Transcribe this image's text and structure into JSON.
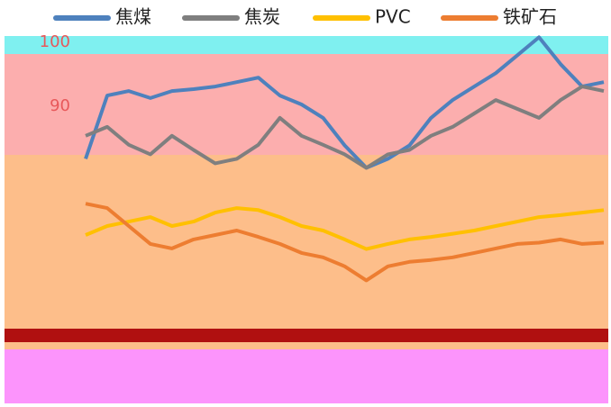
{
  "chart_data": {
    "type": "line",
    "categories": [
      null,
      null,
      null,
      null,
      null,
      null,
      null,
      null,
      null,
      null,
      null,
      null,
      null,
      null,
      null,
      null,
      null,
      null,
      null,
      null,
      null,
      null,
      null,
      null,
      null
    ],
    "ylim": [
      44,
      101
    ],
    "yticks": [
      100,
      90
    ],
    "legend": "top",
    "series": [
      {
        "name": "焦煤",
        "color": "#4e81bd",
        "values": [
          81.8,
          91.7,
          92.4,
          91.3,
          92.4,
          92.7,
          93.1,
          93.8,
          94.5,
          91.7,
          90.3,
          88.2,
          83.9,
          80.4,
          81.8,
          83.9,
          88.2,
          91.0,
          93.1,
          95.2,
          98.0,
          100.8,
          96.6,
          93.1,
          93.8
        ]
      },
      {
        "name": "焦炭",
        "color": "#7f7f7f",
        "values": [
          85.4,
          86.8,
          84.0,
          82.5,
          85.4,
          83.2,
          81.1,
          81.8,
          84.0,
          88.2,
          85.4,
          84.0,
          82.5,
          80.4,
          82.5,
          83.2,
          85.4,
          86.8,
          88.9,
          91.0,
          89.6,
          88.2,
          91.0,
          93.1,
          92.4
        ]
      },
      {
        "name": "PVC",
        "color": "#ffc000",
        "values": [
          69.9,
          71.3,
          72.0,
          72.7,
          71.3,
          72.0,
          73.4,
          74.1,
          73.8,
          72.7,
          71.3,
          70.6,
          69.2,
          67.7,
          68.5,
          69.2,
          69.6,
          70.1,
          70.6,
          71.3,
          72.0,
          72.7,
          73.0,
          73.4,
          73.8
        ]
      },
      {
        "name": "铁矿石",
        "color": "#ed7d31",
        "values": [
          74.8,
          74.1,
          71.3,
          68.5,
          67.8,
          69.2,
          69.9,
          70.6,
          69.6,
          68.5,
          67.1,
          66.4,
          65.0,
          62.8,
          65.0,
          65.7,
          66.0,
          66.4,
          67.1,
          67.8,
          68.5,
          68.7,
          69.2,
          68.5,
          68.7
        ]
      }
    ]
  }
}
